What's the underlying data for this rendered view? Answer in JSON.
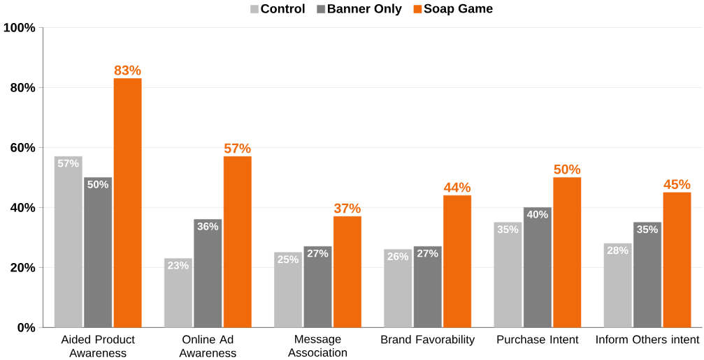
{
  "chart_data": {
    "type": "bar",
    "categories": [
      "Aided Product Awareness",
      "Online Ad Awareness",
      "Message Association",
      "Brand Favorability",
      "Purchase Intent",
      "Inform Others intent"
    ],
    "series": [
      {
        "name": "Control",
        "color": "#bfbfbf",
        "values": [
          57,
          23,
          25,
          26,
          35,
          28
        ],
        "value_labels": [
          "57%",
          "23%",
          "25%",
          "26%",
          "35%",
          "28%"
        ]
      },
      {
        "name": "Banner Only",
        "color": "#7f7f7f",
        "values": [
          50,
          36,
          27,
          27,
          40,
          35
        ],
        "value_labels": [
          "50%",
          "36%",
          "27%",
          "27%",
          "40%",
          "35%"
        ]
      },
      {
        "name": "Soap Game",
        "color": "#f0690a",
        "values": [
          83,
          57,
          37,
          44,
          50,
          45
        ],
        "value_labels": [
          "83%",
          "57%",
          "37%",
          "44%",
          "50%",
          "45%"
        ]
      }
    ],
    "ylim": [
      0,
      100
    ],
    "yticks": [
      {
        "value": 0,
        "label": "0%"
      },
      {
        "value": 20,
        "label": "20%"
      },
      {
        "value": 40,
        "label": "40%"
      },
      {
        "value": 60,
        "label": "60%"
      },
      {
        "value": 80,
        "label": "80%"
      },
      {
        "value": 100,
        "label": "100%"
      }
    ],
    "grid": "y",
    "legend": "top"
  }
}
